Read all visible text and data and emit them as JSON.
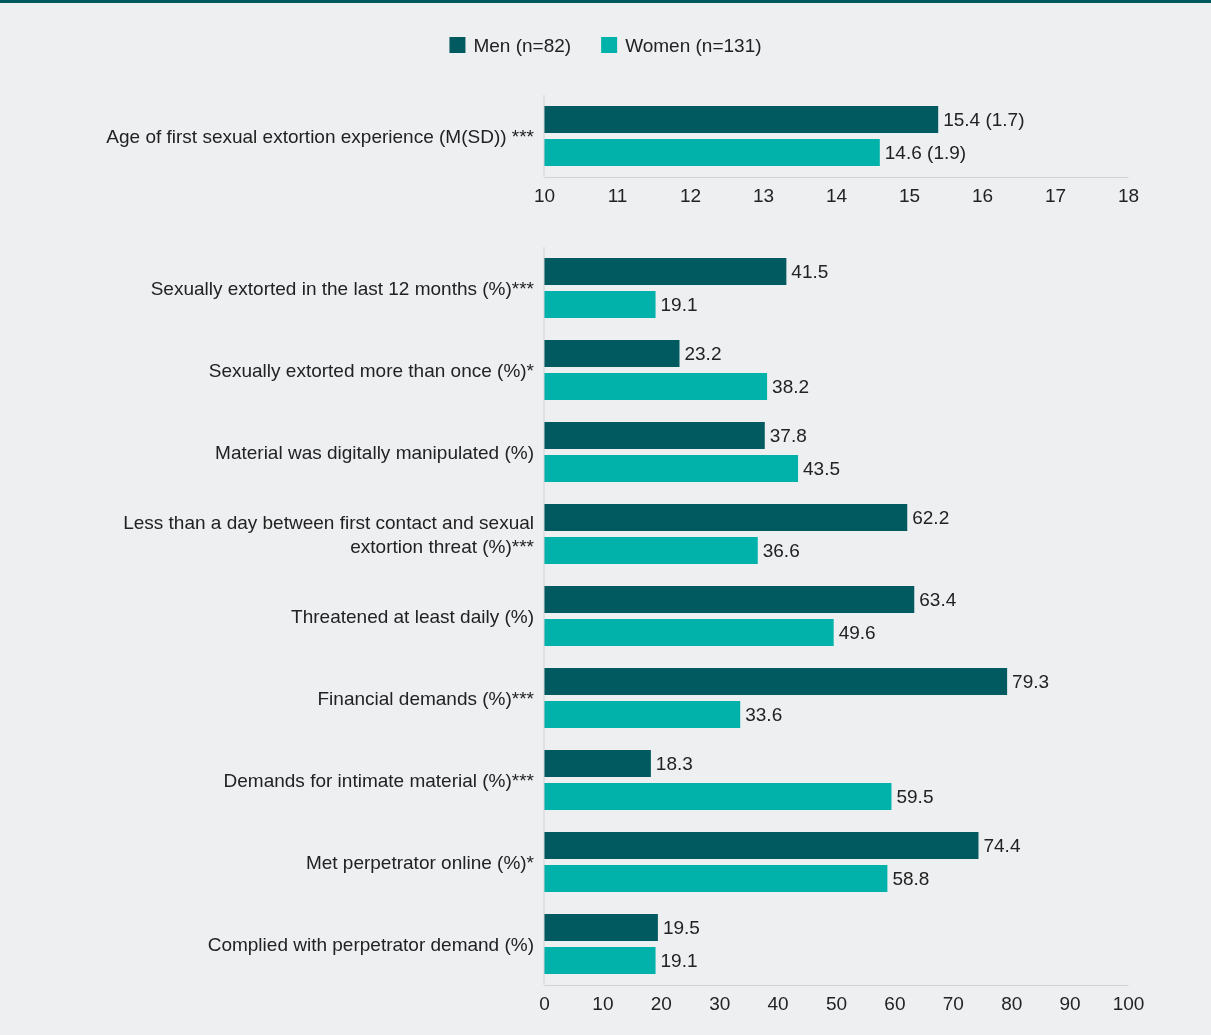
{
  "chart_data": [
    {
      "type": "bar",
      "orientation": "horizontal",
      "legend": "top",
      "categories": [
        "Age of first sexual extortion experience (M(SD)) ***"
      ],
      "xlim": [
        10,
        18
      ],
      "xticks": [
        10,
        11,
        12,
        13,
        14,
        15,
        16,
        17,
        18
      ],
      "series": [
        {
          "name": "Men (n=82)",
          "color": "#005a5f",
          "values": [
            15.4
          ],
          "value_labels": [
            "15.4 (1.7)"
          ]
        },
        {
          "name": "Women (n=131)",
          "color": "#00b2a9",
          "values": [
            14.6
          ],
          "value_labels": [
            "14.6 (1.9)"
          ]
        }
      ]
    },
    {
      "type": "bar",
      "orientation": "horizontal",
      "data_labels": true,
      "categories": [
        "Sexually extorted in the last 12 months (%)***",
        "Sexually extorted more than once (%)*",
        "Material was digitally manipulated (%)",
        "Less than a day between first contact and sexual extortion threat (%)***",
        "Threatened at least daily (%)",
        "Financial demands (%)***",
        "Demands for intimate material (%)***",
        "Met perpetrator online (%)*",
        "Complied with perpetrator demand (%)"
      ],
      "xlim": [
        0,
        100
      ],
      "xticks": [
        0,
        10,
        20,
        30,
        40,
        50,
        60,
        70,
        80,
        90,
        100
      ],
      "series": [
        {
          "color": "#005a5f",
          "values": [
            41.5,
            23.2,
            37.8,
            62.2,
            63.4,
            79.3,
            18.3,
            74.4,
            19.5
          ]
        },
        {
          "color": "#00b2a9",
          "values": [
            19.1,
            38.2,
            43.5,
            36.6,
            49.6,
            33.6,
            59.5,
            58.8,
            19.1
          ]
        }
      ]
    }
  ]
}
